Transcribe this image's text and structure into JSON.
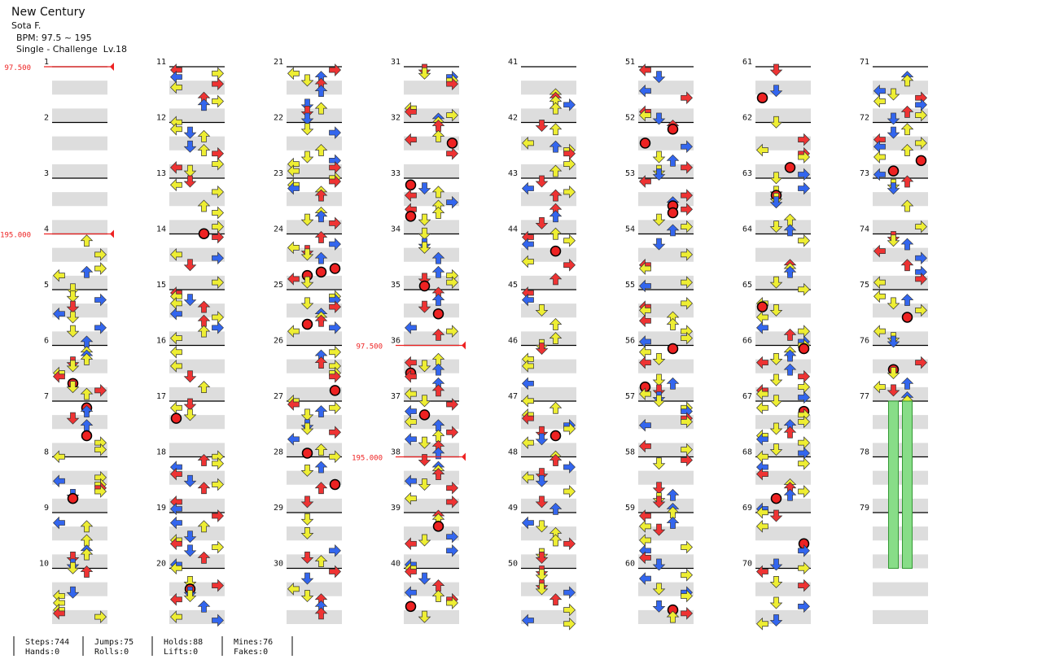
{
  "header": {
    "title": "New Century",
    "artist": "Sota F.",
    "bpm": "BPM: 97.5 ~ 195",
    "difficulty": "Single - Challenge  Lv.18"
  },
  "measures": [
    1,
    2,
    3,
    4,
    5,
    6,
    7,
    8,
    9,
    10,
    11,
    12,
    13,
    14,
    15,
    16,
    17,
    18,
    19,
    20,
    21,
    22,
    23,
    24,
    25,
    26,
    27,
    28,
    29,
    30,
    31,
    32,
    33,
    34,
    35,
    36,
    37,
    38,
    39,
    40,
    41,
    42,
    43,
    44,
    45,
    46,
    47,
    48,
    49,
    50,
    51,
    52,
    53,
    54,
    55,
    56,
    57,
    58,
    59,
    60,
    61,
    62,
    63,
    64,
    65,
    66,
    67,
    68,
    69,
    70,
    71,
    72,
    73,
    74,
    75,
    76,
    77,
    78,
    79
  ],
  "bpm_changes": [
    {
      "measure": 1,
      "label": "97.500"
    },
    {
      "measure": 4,
      "label": "195.000"
    },
    {
      "measure": 36,
      "label": "97.500"
    },
    {
      "measure": 38,
      "label": "195.000"
    }
  ],
  "stats": [
    [
      "Steps:744",
      "Hands:0"
    ],
    [
      "Jumps:75",
      "Rolls:0"
    ],
    [
      "Holds:88",
      "Lifts:0"
    ],
    [
      "Mines:76",
      "Fakes:0"
    ]
  ]
}
